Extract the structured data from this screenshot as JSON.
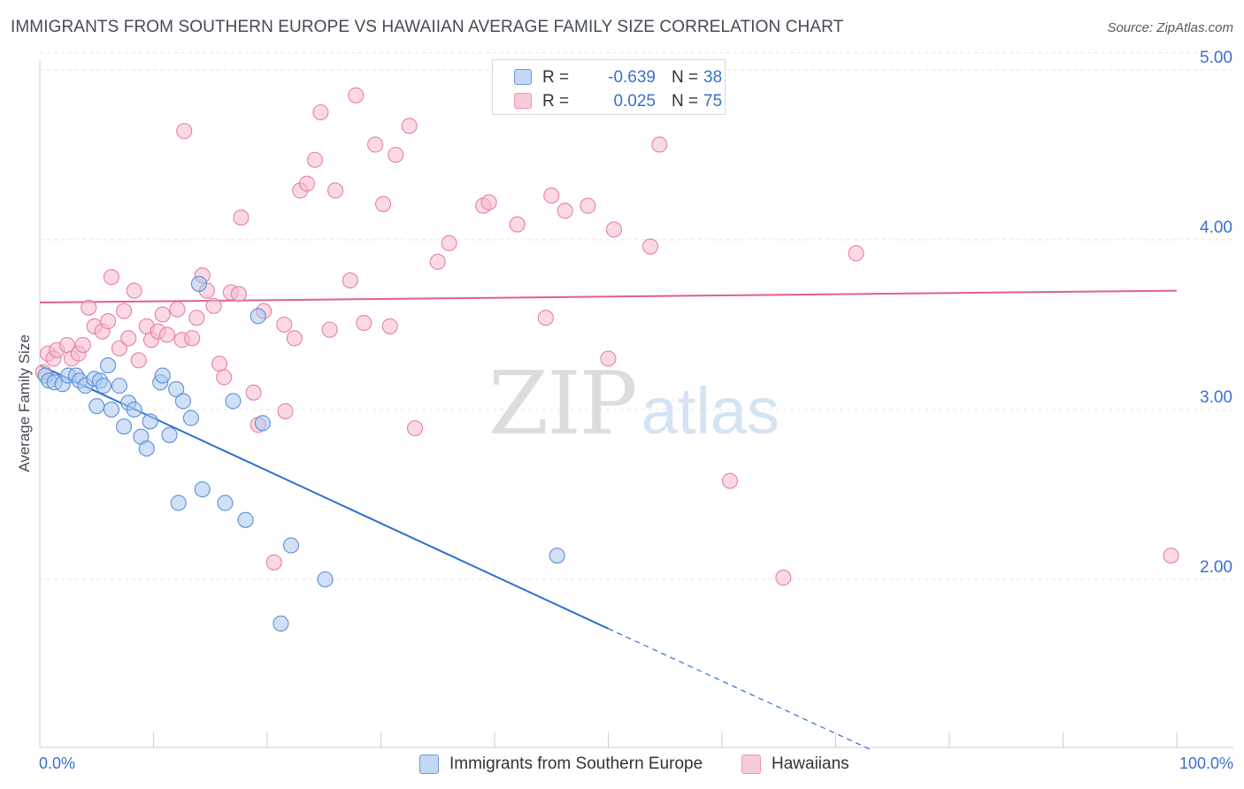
{
  "header": {
    "title": "IMMIGRANTS FROM SOUTHERN EUROPE VS HAWAIIAN AVERAGE FAMILY SIZE CORRELATION CHART",
    "source": "Source: ZipAtlas.com"
  },
  "watermark": {
    "zip": "ZIP",
    "atlas": "atlas"
  },
  "stats": [
    {
      "r_label": "R =",
      "r_value": "-0.639",
      "n_label": "N =",
      "n_value": "38"
    },
    {
      "r_label": "R =",
      "r_value": "0.025",
      "n_label": "N =",
      "n_value": "75"
    }
  ],
  "legend": [
    {
      "label": "Immigrants from Southern Europe"
    },
    {
      "label": "Hawaiians"
    }
  ],
  "x_end_labels": {
    "left": "0.0%",
    "right": "100.0%"
  },
  "chart_data": {
    "type": "scatter",
    "ylabel": "Average Family Size",
    "xlim": [
      0,
      100
    ],
    "ylim": [
      1.0,
      5.1
    ],
    "y_ticks": [
      2.0,
      3.0,
      4.0,
      5.0
    ],
    "y_tick_labels": [
      "2.00",
      "3.00",
      "4.00",
      "5.00"
    ],
    "grid": "horizontal dashed",
    "series": [
      {
        "name": "Immigrants from Southern Europe",
        "color": "#a9c7ee",
        "stroke": "#5b8fd6",
        "line_color": "#2f6fd0",
        "trend": {
          "x0": 0,
          "y0": 3.26,
          "x1": 50,
          "y1": 1.71,
          "dashed_to_x": 73,
          "dashed_to_y": 1.0
        },
        "points": [
          [
            0.5,
            3.2
          ],
          [
            0.8,
            3.17
          ],
          [
            1.3,
            3.16
          ],
          [
            2.0,
            3.15
          ],
          [
            2.5,
            3.2
          ],
          [
            3.2,
            3.2
          ],
          [
            3.5,
            3.17
          ],
          [
            4.0,
            3.14
          ],
          [
            4.8,
            3.18
          ],
          [
            5.3,
            3.17
          ],
          [
            5.0,
            3.02
          ],
          [
            5.6,
            3.14
          ],
          [
            6.0,
            3.26
          ],
          [
            6.3,
            3.0
          ],
          [
            7.0,
            3.14
          ],
          [
            7.4,
            2.9
          ],
          [
            7.8,
            3.04
          ],
          [
            8.3,
            3.0
          ],
          [
            8.9,
            2.84
          ],
          [
            9.4,
            2.77
          ],
          [
            9.7,
            2.93
          ],
          [
            10.6,
            3.16
          ],
          [
            10.8,
            3.2
          ],
          [
            11.4,
            2.85
          ],
          [
            12.0,
            3.12
          ],
          [
            12.2,
            2.45
          ],
          [
            12.6,
            3.05
          ],
          [
            13.3,
            2.95
          ],
          [
            14.0,
            3.74
          ],
          [
            14.3,
            2.53
          ],
          [
            16.3,
            2.45
          ],
          [
            17.0,
            3.05
          ],
          [
            18.1,
            2.35
          ],
          [
            19.2,
            3.55
          ],
          [
            19.6,
            2.92
          ],
          [
            21.2,
            1.74
          ],
          [
            22.1,
            2.2
          ],
          [
            25.1,
            2.0
          ],
          [
            45.5,
            2.14
          ]
        ]
      },
      {
        "name": "Hawaiians",
        "color": "#f6b9cc",
        "stroke": "#e8809f",
        "line_color": "#e0608a",
        "trend": {
          "x0": 0,
          "y0": 3.63,
          "x1": 100,
          "y1": 3.7
        },
        "points": [
          [
            0.3,
            3.22
          ],
          [
            0.7,
            3.33
          ],
          [
            1.2,
            3.3
          ],
          [
            1.5,
            3.35
          ],
          [
            2.4,
            3.38
          ],
          [
            2.8,
            3.3
          ],
          [
            3.4,
            3.33
          ],
          [
            3.8,
            3.38
          ],
          [
            4.3,
            3.6
          ],
          [
            4.8,
            3.49
          ],
          [
            5.5,
            3.46
          ],
          [
            6.0,
            3.52
          ],
          [
            6.3,
            3.78
          ],
          [
            7.0,
            3.36
          ],
          [
            7.4,
            3.58
          ],
          [
            7.8,
            3.42
          ],
          [
            8.3,
            3.7
          ],
          [
            8.7,
            3.29
          ],
          [
            9.4,
            3.49
          ],
          [
            9.8,
            3.41
          ],
          [
            10.4,
            3.46
          ],
          [
            10.8,
            3.56
          ],
          [
            11.2,
            3.44
          ],
          [
            12.1,
            3.59
          ],
          [
            12.5,
            3.41
          ],
          [
            12.7,
            4.64
          ],
          [
            13.4,
            3.42
          ],
          [
            13.8,
            3.54
          ],
          [
            14.3,
            3.79
          ],
          [
            14.7,
            3.7
          ],
          [
            15.3,
            3.61
          ],
          [
            15.8,
            3.27
          ],
          [
            16.2,
            3.19
          ],
          [
            16.8,
            3.69
          ],
          [
            17.5,
            3.68
          ],
          [
            17.7,
            4.13
          ],
          [
            18.8,
            3.1
          ],
          [
            19.2,
            2.91
          ],
          [
            19.7,
            3.58
          ],
          [
            20.6,
            2.1
          ],
          [
            21.5,
            3.5
          ],
          [
            21.6,
            2.99
          ],
          [
            22.4,
            3.42
          ],
          [
            22.9,
            4.29
          ],
          [
            23.5,
            4.33
          ],
          [
            24.2,
            4.47
          ],
          [
            24.7,
            4.75
          ],
          [
            25.5,
            3.47
          ],
          [
            26.0,
            4.29
          ],
          [
            27.3,
            3.76
          ],
          [
            27.8,
            4.85
          ],
          [
            28.5,
            3.51
          ],
          [
            29.5,
            4.56
          ],
          [
            30.2,
            4.21
          ],
          [
            30.8,
            3.49
          ],
          [
            31.3,
            4.5
          ],
          [
            32.5,
            4.67
          ],
          [
            33.0,
            2.89
          ],
          [
            35.0,
            3.87
          ],
          [
            36.0,
            3.98
          ],
          [
            39.0,
            4.2
          ],
          [
            39.5,
            4.22
          ],
          [
            42.0,
            4.09
          ],
          [
            44.5,
            3.54
          ],
          [
            45.0,
            4.26
          ],
          [
            46.2,
            4.17
          ],
          [
            48.2,
            4.2
          ],
          [
            50.0,
            3.3
          ],
          [
            50.5,
            4.06
          ],
          [
            53.7,
            3.96
          ],
          [
            54.5,
            4.56
          ],
          [
            60.7,
            2.58
          ],
          [
            65.4,
            2.01
          ],
          [
            71.8,
            3.92
          ],
          [
            99.5,
            2.14
          ]
        ]
      }
    ]
  }
}
